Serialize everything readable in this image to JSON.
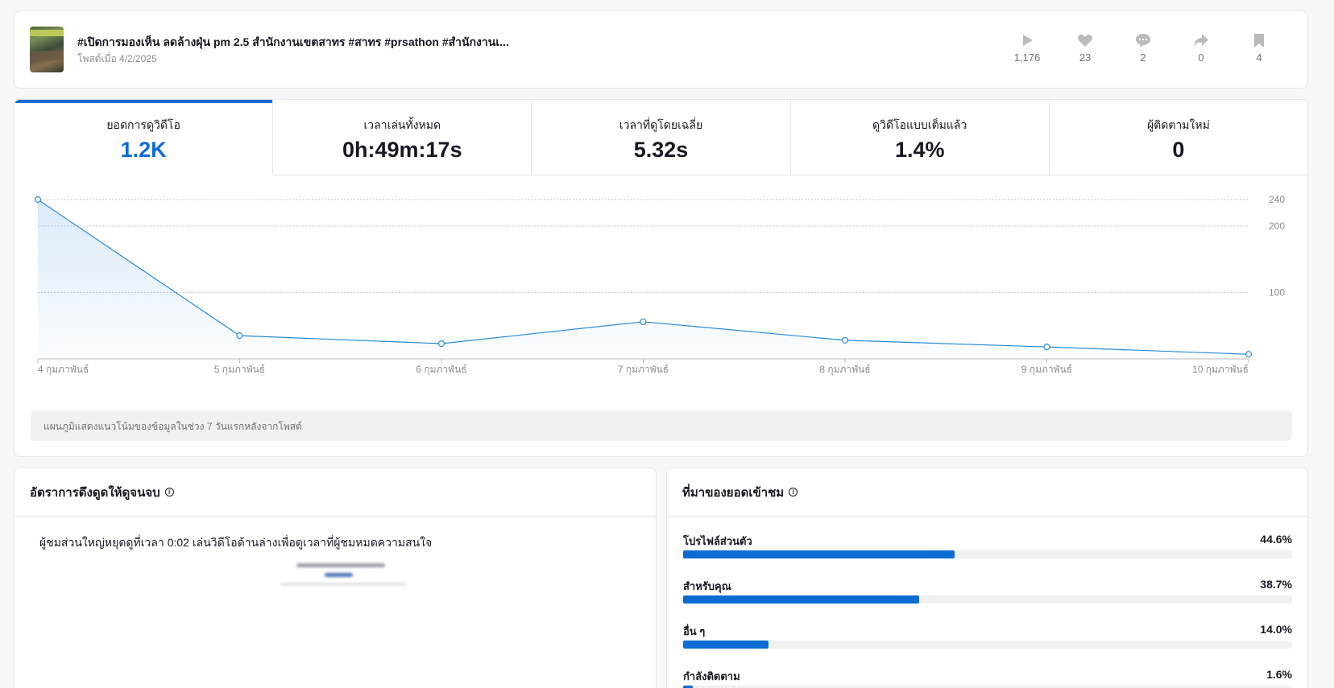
{
  "post": {
    "title": "#เปิดการมองเห็น ลดล้างฝุ่น pm 2.5 สำนักงานเขตสาทร #สาทร #prsathon #สำนักงานเ...",
    "posted_date": "โพสต์เมื่อ 4/2/2025",
    "stats": [
      {
        "icon": "play-icon",
        "value": "1,176"
      },
      {
        "icon": "heart-icon",
        "value": "23"
      },
      {
        "icon": "comment-icon",
        "value": "2"
      },
      {
        "icon": "share-icon",
        "value": "0"
      },
      {
        "icon": "bookmark-icon",
        "value": "4"
      }
    ]
  },
  "metrics": {
    "tabs": [
      {
        "label": "ยอดการดูวิดีโอ",
        "value": "1.2K"
      },
      {
        "label": "เวลาเล่นทั้งหมด",
        "value": "0h:49m:17s"
      },
      {
        "label": "เวลาที่ดูโดยเฉลี่ย",
        "value": "5.32s"
      },
      {
        "label": "ดูวิดีโอแบบเต็มแล้ว",
        "value": "1.4%"
      },
      {
        "label": "ผู้ติดตามใหม่",
        "value": "0"
      }
    ],
    "chart_note": "แผนภูมิแสดงแนวโน้มของข้อมูลในช่วง 7 วันแรกหลังจากโพสต์"
  },
  "chart_data": {
    "type": "area",
    "x": [
      "4 กุมภาพันธ์",
      "5 กุมภาพันธ์",
      "6 กุมภาพันธ์",
      "7 กุมภาพันธ์",
      "8 กุมภาพันธ์",
      "9 กุมภาพันธ์",
      "10 กุมภาพันธ์"
    ],
    "series": [
      {
        "values": [
          240,
          35,
          23,
          56,
          28,
          18,
          7
        ]
      }
    ],
    "yticks": [
      100,
      200,
      240
    ],
    "ylim": [
      0,
      240
    ],
    "grid": true,
    "color": "#2b8bd6"
  },
  "retention": {
    "title": "อัตราการดึงดูดให้ดูจนจบ",
    "info_icon": "i",
    "text": "ผู้ชมส่วนใหญ่หยุดดูที่เวลา 0:02 เล่นวิดีโอด้านล่างเพื่อดูเวลาที่ผู้ชมหมดความสนใจ"
  },
  "sources": {
    "title": "ที่มาของยอดเข้าชม",
    "info_icon": "i",
    "items": [
      {
        "label": "โปรไฟล์ส่วนตัว",
        "pct_text": "44.6%",
        "pct": 44.6
      },
      {
        "label": "สำหรับคุณ",
        "pct_text": "38.7%",
        "pct": 38.7
      },
      {
        "label": "อื่น ๆ",
        "pct_text": "14.0%",
        "pct": 14.0
      },
      {
        "label": "กำลังติดตาม",
        "pct_text": "1.6%",
        "pct": 1.6
      }
    ]
  },
  "colors": {
    "accent": "#0c6cd4"
  }
}
